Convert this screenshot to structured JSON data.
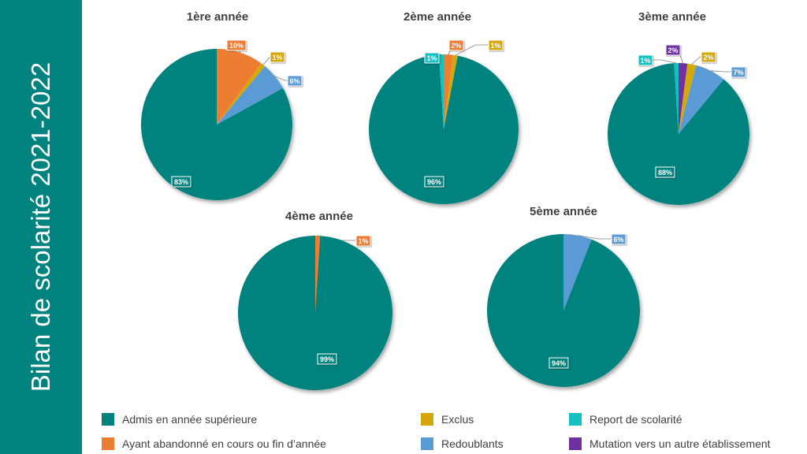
{
  "sidebar": {
    "title": "Bilan de scolarité 2021-2022"
  },
  "colors": {
    "admis": "#00827f",
    "abandon": "#ed7d31",
    "exclus": "#d4a80b",
    "redoublants": "#5b9bd5",
    "report": "#14c0c0",
    "mutation": "#7030a0"
  },
  "legend": [
    {
      "key": "admis",
      "label": "Admis en année supérieure"
    },
    {
      "key": "abandon",
      "label": "Ayant abandonné en cours ou fin d’année"
    },
    {
      "key": "exclus",
      "label": "Exclus"
    },
    {
      "key": "redoublants",
      "label": "Redoublants"
    },
    {
      "key": "report",
      "label": "Report de scolarité"
    },
    {
      "key": "mutation",
      "label": "Mutation vers un autre établissement"
    }
  ],
  "chart_data": [
    {
      "type": "pie",
      "title": "1ère année",
      "slices": [
        {
          "key": "abandon",
          "value": 10,
          "label": "10%"
        },
        {
          "key": "exclus",
          "value": 1,
          "label": "1%"
        },
        {
          "key": "redoublants",
          "value": 6,
          "label": "6%"
        },
        {
          "key": "admis",
          "value": 83,
          "label": "83%"
        }
      ]
    },
    {
      "type": "pie",
      "title": "2ème année",
      "slices": [
        {
          "key": "abandon",
          "value": 2,
          "label": "2%"
        },
        {
          "key": "exclus",
          "value": 1,
          "label": "1%"
        },
        {
          "key": "admis",
          "value": 96,
          "label": "96%"
        },
        {
          "key": "report",
          "value": 1,
          "label": "1%"
        }
      ]
    },
    {
      "type": "pie",
      "title": "3ème année",
      "slices": [
        {
          "key": "mutation",
          "value": 2,
          "label": "2%"
        },
        {
          "key": "exclus",
          "value": 2,
          "label": "2%"
        },
        {
          "key": "redoublants",
          "value": 7,
          "label": "7%"
        },
        {
          "key": "admis",
          "value": 88,
          "label": "88%"
        },
        {
          "key": "report",
          "value": 1,
          "label": "1%"
        }
      ]
    },
    {
      "type": "pie",
      "title": "4ème année",
      "slices": [
        {
          "key": "abandon",
          "value": 1,
          "label": "1%"
        },
        {
          "key": "admis",
          "value": 99,
          "label": "99%"
        }
      ]
    },
    {
      "type": "pie",
      "title": "5ème année",
      "slices": [
        {
          "key": "redoublants",
          "value": 6,
          "label": "6%"
        },
        {
          "key": "admis",
          "value": 94,
          "label": "94%"
        }
      ]
    }
  ]
}
